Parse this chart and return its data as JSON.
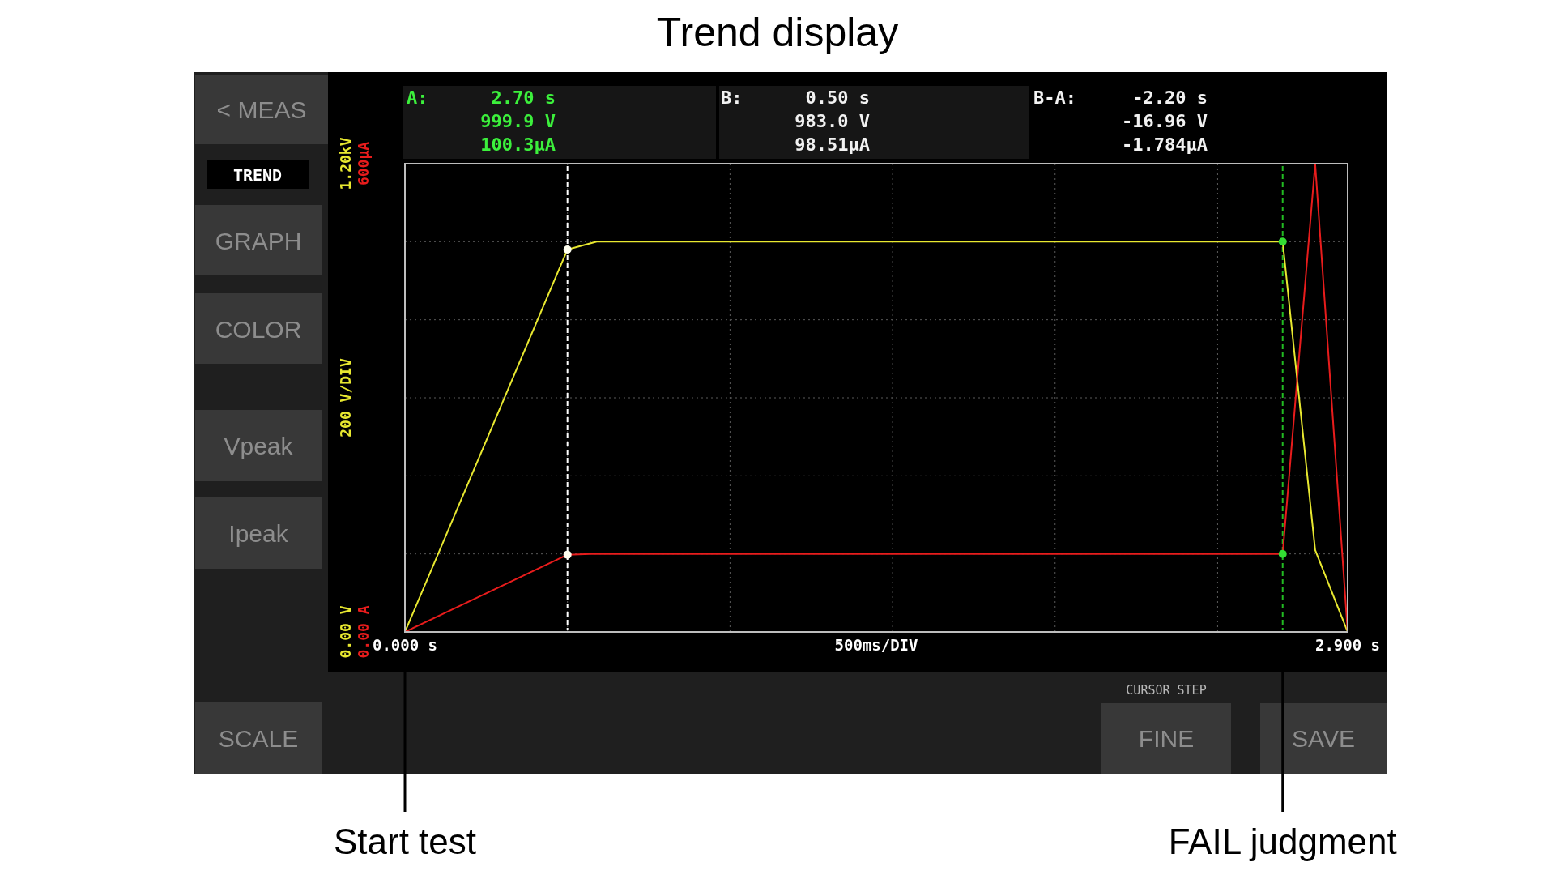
{
  "chart_data": {
    "type": "line",
    "title": "Trend display",
    "xlabel": "500ms/DIV",
    "ylabel": "200 V/DIV",
    "xlim": [
      0,
      2.9
    ],
    "xticks": [
      {
        "value": 0,
        "label": "0.000 s"
      },
      {
        "value": 0.5,
        "label": null
      },
      {
        "value": 1,
        "label": null
      },
      {
        "value": 1.5,
        "label": null
      },
      {
        "value": 2,
        "label": null
      },
      {
        "value": 2.5,
        "label": null
      },
      {
        "value": 2.9,
        "label": "2.900 s"
      }
    ],
    "ylim": [
      0,
      1.2
    ],
    "yticks": [
      {
        "value": 0,
        "label": "0.00 V"
      },
      {
        "value": 0.2,
        "label": null
      },
      {
        "value": 0.4,
        "label": null
      },
      {
        "value": 0.6,
        "label": null
      },
      {
        "value": 0.8,
        "label": null
      },
      {
        "value": 1,
        "label": null
      },
      {
        "value": 1.2,
        "label": "1.20kV"
      }
    ],
    "y2lim": [
      0,
      600
    ],
    "y2ticks": [
      {
        "value": 0,
        "label": "0.00 A"
      },
      {
        "value": 600,
        "label": "600µA"
      }
    ],
    "grid": true,
    "series": [
      {
        "color": "#e8e830",
        "x": [
          0,
          0.5,
          0.59,
          2.7,
          2.8,
          2.9
        ],
        "values": [
          0,
          0.98,
          1,
          1,
          0.21,
          0
        ]
      },
      {
        "color": "#e81c1c",
        "axis": "y2",
        "x": [
          0,
          0.5,
          0.57,
          2.7,
          2.8,
          2.9
        ],
        "values": [
          0,
          99,
          100,
          100,
          600,
          0
        ]
      },
      {
        "type": "scatter",
        "marker": "circle",
        "x": [
          0.5,
          2.7
        ],
        "values": [
          0.98,
          1
        ],
        "colors": [
          "#fffff0",
          "#33dd33"
        ]
      },
      {
        "type": "scatter",
        "marker": "circle",
        "axis": "y2",
        "x": [
          0.5,
          2.7
        ],
        "values": [
          99,
          100
        ],
        "colors": [
          "#fffff0",
          "#33dd33"
        ]
      }
    ],
    "ref_lines": [
      {
        "axis": "x",
        "value": 0.5,
        "color": "#ffffff",
        "line_style": "dashed"
      },
      {
        "axis": "x",
        "value": 2.7,
        "color": "#22bb22",
        "line_style": "dashed"
      }
    ],
    "annotations": [
      "A:",
      "2.70 s",
      "999.9 V",
      "100.3µA",
      "B:",
      "0.50 s",
      "983.0 V",
      "98.51µA",
      "B-A:",
      "-2.20 s",
      "-16.96 V",
      "-1.784µA",
      "< MEAS",
      "TREND",
      "GRAPH",
      "COLOR",
      "Vpeak",
      "Ipeak",
      "SCALE",
      "CURSOR STEP",
      "FINE",
      "SAVE",
      {
        "text": "Start test",
        "x": 0
      },
      {
        "text": "FAIL judgment",
        "x": 2.7
      }
    ]
  }
}
